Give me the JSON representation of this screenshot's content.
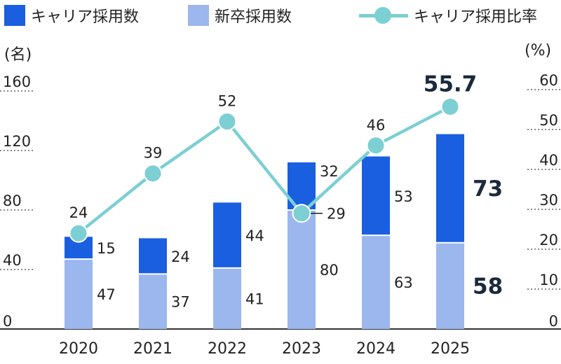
{
  "legend": {
    "career": "キャリア採用数",
    "newgrad": "新卒採用数",
    "ratio": "キャリア採用比率"
  },
  "colors": {
    "career": "#1a5fe0",
    "newgrad": "#9cb7ee",
    "ratio": "#7ccfd3",
    "grid": "#444444"
  },
  "chart_data": {
    "type": "bar",
    "stacked": true,
    "categories": [
      "2020",
      "2021",
      "2022",
      "2023",
      "2024",
      "2025"
    ],
    "series": [
      {
        "name": "新卒採用数",
        "values": [
          47,
          37,
          41,
          80,
          63,
          58
        ]
      },
      {
        "name": "キャリア採用数",
        "values": [
          15,
          24,
          44,
          32,
          53,
          73
        ]
      }
    ],
    "line_series": {
      "name": "キャリア採用比率",
      "values": [
        24,
        39,
        52,
        29,
        46,
        55.7
      ],
      "axis": "right"
    },
    "ylabel_left": "(名)",
    "ylabel_right": "(%)",
    "ylim_left": [
      0,
      160
    ],
    "ylim_right": [
      0,
      60
    ],
    "yticks_left": [
      0,
      40,
      80,
      120,
      160
    ],
    "yticks_right": [
      0,
      10,
      20,
      30,
      40,
      50,
      60
    ],
    "grid": "dotted, left axis ticks",
    "data_labels": {
      "newgrad": [
        "47",
        "37",
        "41",
        "80",
        "63",
        "58"
      ],
      "career": [
        "15",
        "24",
        "44",
        "32",
        "53",
        "73"
      ],
      "ratio": [
        "24",
        "39",
        "52",
        "29",
        "46",
        "55.7"
      ]
    }
  }
}
